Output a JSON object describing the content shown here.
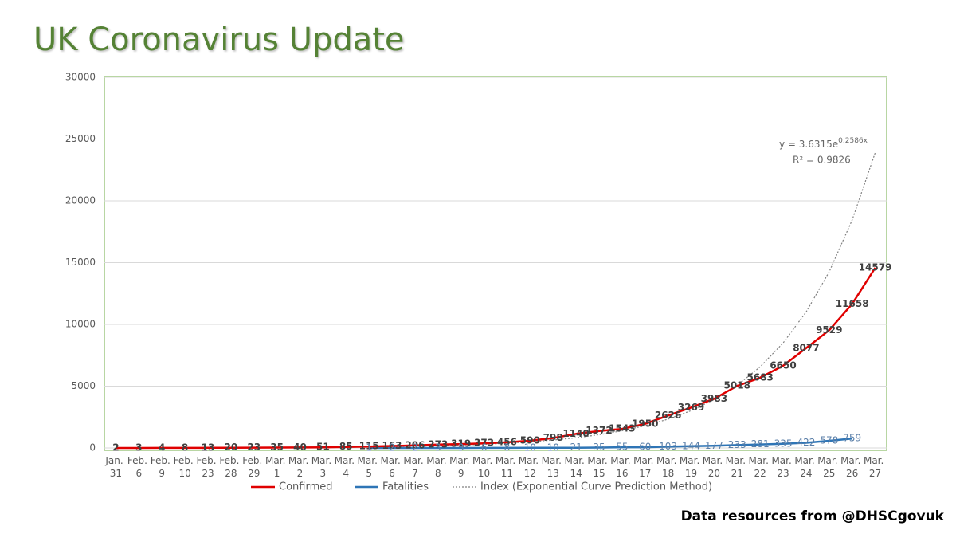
{
  "chart_data": {
    "type": "line",
    "title": "UK Coronavirus Update",
    "footer": "Data resources from @DHSCgovuk",
    "equation": "y = 3.6315e",
    "equation_exponent": "0.2586x",
    "r_squared": "R² = 0.9826",
    "categories": [
      "Jan. 31",
      "Feb. 6",
      "Feb. 9",
      "Feb. 10",
      "Feb. 23",
      "Feb. 28",
      "Feb. 29",
      "Mar. 1",
      "Mar. 2",
      "Mar. 3",
      "Mar. 4",
      "Mar. 5",
      "Mar. 6",
      "Mar. 7",
      "Mar. 8",
      "Mar. 9",
      "Mar. 10",
      "Mar. 11",
      "Mar. 12",
      "Mar. 13",
      "Mar. 14",
      "Mar. 15",
      "Mar. 16",
      "Mar. 17",
      "Mar. 18",
      "Mar. 19",
      "Mar. 20",
      "Mar. 21",
      "Mar. 22",
      "Mar. 23",
      "Mar. 24",
      "Mar. 25",
      "Mar. 26",
      "Mar. 27"
    ],
    "series": [
      {
        "name": "Confirmed",
        "color": "#e00000",
        "style": "solid",
        "labels": true,
        "values": [
          2,
          3,
          4,
          8,
          13,
          20,
          23,
          35,
          40,
          51,
          85,
          115,
          163,
          206,
          273,
          319,
          373,
          456,
          590,
          798,
          1140,
          1372,
          1543,
          1950,
          2626,
          3269,
          3983,
          5018,
          5683,
          6650,
          8077,
          9529,
          11658,
          14579
        ]
      },
      {
        "name": "Fatalities",
        "color": "#2e75b6",
        "style": "solid",
        "labels": true,
        "values": [
          null,
          null,
          null,
          null,
          null,
          null,
          null,
          null,
          null,
          null,
          null,
          1,
          2,
          2,
          3,
          3,
          6,
          8,
          10,
          10,
          21,
          35,
          55,
          60,
          103,
          144,
          177,
          233,
          281,
          335,
          422,
          578,
          759,
          null
        ]
      },
      {
        "name": "Index (Exponential Curve Prediction Method)",
        "color": "#808080",
        "style": "dotted",
        "labels": false,
        "values": [
          4.7,
          6.1,
          7.9,
          10.2,
          13.2,
          17.1,
          22.2,
          28.7,
          37.2,
          48.2,
          62.4,
          80.9,
          104.7,
          135.6,
          175.6,
          227.5,
          294.6,
          381.5,
          494.1,
          639.9,
          828.8,
          1073,
          1390,
          1800,
          2332,
          3020,
          3911,
          5065,
          6560,
          8495,
          11002,
          14249,
          18453,
          23899
        ]
      }
    ],
    "ylim": [
      0,
      30000
    ],
    "yticks": [
      0,
      5000,
      10000,
      15000,
      20000,
      25000,
      30000
    ],
    "grid": true
  }
}
